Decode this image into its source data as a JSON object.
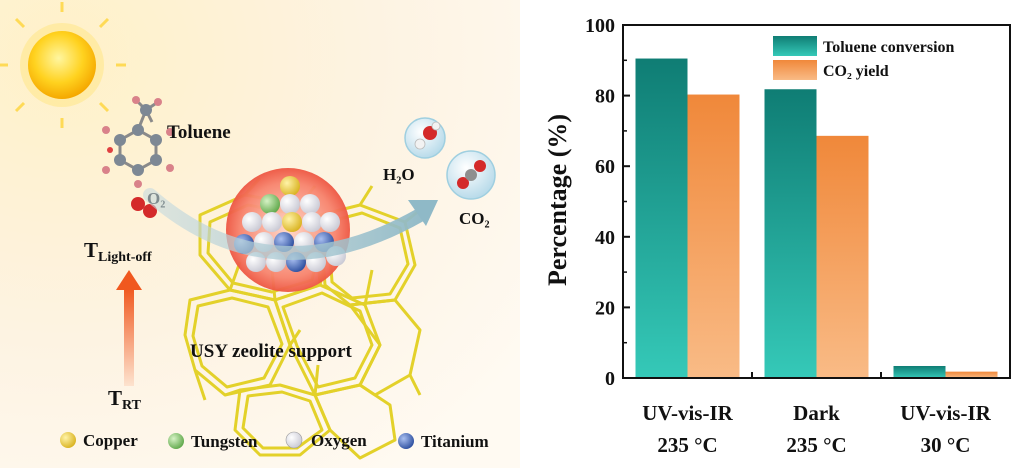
{
  "illustration": {
    "labels": {
      "toluene": "Toluene",
      "o2": "O₂",
      "h2o": "H₂O",
      "co2": "CO₂",
      "t_lightoff_main": "T",
      "t_lightoff_sub": "Light-off",
      "t_rt_main": "T",
      "t_rt_sub": "RT",
      "support": "USY zeolite support"
    },
    "legend": [
      {
        "label": "Copper",
        "color": "#e8c93c"
      },
      {
        "label": "Tungsten",
        "color": "#7fbf6a"
      },
      {
        "label": "Oxygen",
        "color": "#e9e9ee"
      },
      {
        "label": "Titanium",
        "color": "#3f63b8"
      }
    ]
  },
  "chart_data": {
    "type": "bar",
    "categories": [
      {
        "line1": "UV-vis-IR",
        "line2": "235 °C"
      },
      {
        "line1": "Dark",
        "line2": "235 °C"
      },
      {
        "line1": "UV-vis-IR",
        "line2": "30 °C"
      }
    ],
    "series": [
      {
        "name": "Toluene conversion",
        "values": [
          90.5,
          81.8,
          3.4
        ],
        "color_top": "#0f7d74",
        "color_bottom": "#35c9b8"
      },
      {
        "name": "CO₂ yield",
        "values": [
          80.3,
          68.6,
          1.8
        ],
        "color_top": "#f0883a",
        "color_bottom": "#f9bb86"
      }
    ],
    "ylabel": "Percentage (%)",
    "ylim": [
      0,
      100
    ],
    "yticks": [
      0,
      20,
      40,
      60,
      80,
      100
    ],
    "legend_position": "top-right",
    "grid": false
  }
}
